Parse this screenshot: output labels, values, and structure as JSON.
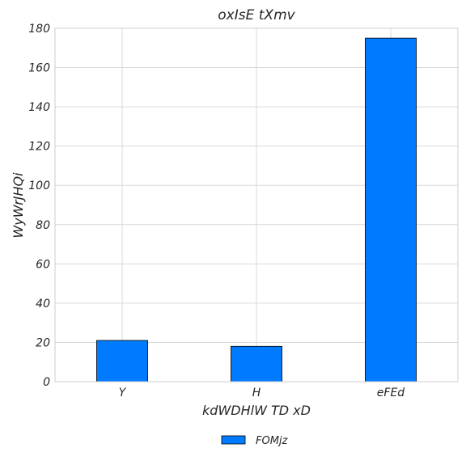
{
  "chart_data": {
    "type": "bar",
    "title": "oxIsE tXmv",
    "xlabel": "kdWDHlW TD xD",
    "ylabel": "WyWrJHQi",
    "categories": [
      "Y",
      "H",
      "eFEd"
    ],
    "series": [
      {
        "name": "FOMjz",
        "values": [
          21,
          18,
          175
        ]
      }
    ],
    "ylim": [
      0,
      180
    ],
    "yticks": [
      0,
      20,
      40,
      60,
      80,
      100,
      120,
      140,
      160,
      180
    ],
    "grid": true,
    "legend_position": "bottom-center",
    "colors": {
      "bar": "#007bff",
      "bar_edge": "#000000",
      "grid": "#d9d9d9",
      "frame": "#cccccc"
    }
  }
}
